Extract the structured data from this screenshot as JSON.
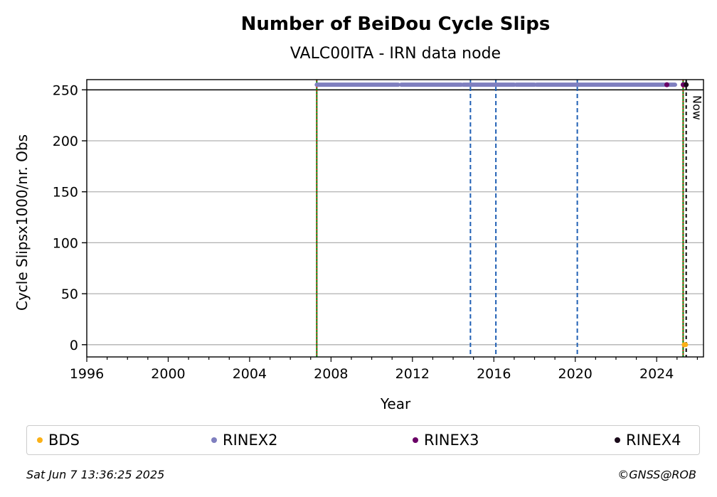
{
  "chart_data": {
    "type": "scatter",
    "title": "Number of BeiDou Cycle Slips",
    "subtitle": "VALC00ITA - IRN data node",
    "xlabel": "Year",
    "ylabel": "Cycle Slipsx1000/nr. Obs",
    "xlim": [
      1996,
      2026.3
    ],
    "ylim": [
      -12,
      260
    ],
    "xticks": [
      1996,
      2000,
      2004,
      2008,
      2012,
      2016,
      2020,
      2024
    ],
    "yticks": [
      0,
      50,
      100,
      150,
      200,
      250
    ],
    "grid": "horizontal",
    "hline": 250,
    "now_label": "Now",
    "now_line_x": 2025.45,
    "vlines_blue_dashed": [
      2014.85,
      2016.1,
      2020.1
    ],
    "vlines_green_red": [
      2007.3,
      2025.3
    ],
    "series": [
      {
        "name": "BDS",
        "color": "#fbb117",
        "points": [
          [
            2025.35,
            0
          ],
          [
            2025.42,
            0
          ]
        ]
      },
      {
        "name": "RINEX2",
        "color": "#7f7fbf",
        "segments": [
          [
            2007.3,
            2011.3
          ],
          [
            2011.45,
            2014.4
          ],
          [
            2014.5,
            2017.0
          ],
          [
            2017.1,
            2018.0
          ],
          [
            2018.1,
            2024.9
          ]
        ],
        "y": 255
      },
      {
        "name": "RINEX3",
        "color": "#6a0066",
        "points": [
          [
            2024.5,
            255
          ],
          [
            2025.3,
            255
          ],
          [
            2025.4,
            255
          ]
        ]
      },
      {
        "name": "RINEX4",
        "color": "#1a0a1a",
        "points": [
          [
            2025.45,
            255
          ]
        ]
      }
    ]
  },
  "footer": {
    "timestamp": "Sat Jun  7 13:36:25 2025",
    "copyright": "©GNSS@ROB"
  }
}
